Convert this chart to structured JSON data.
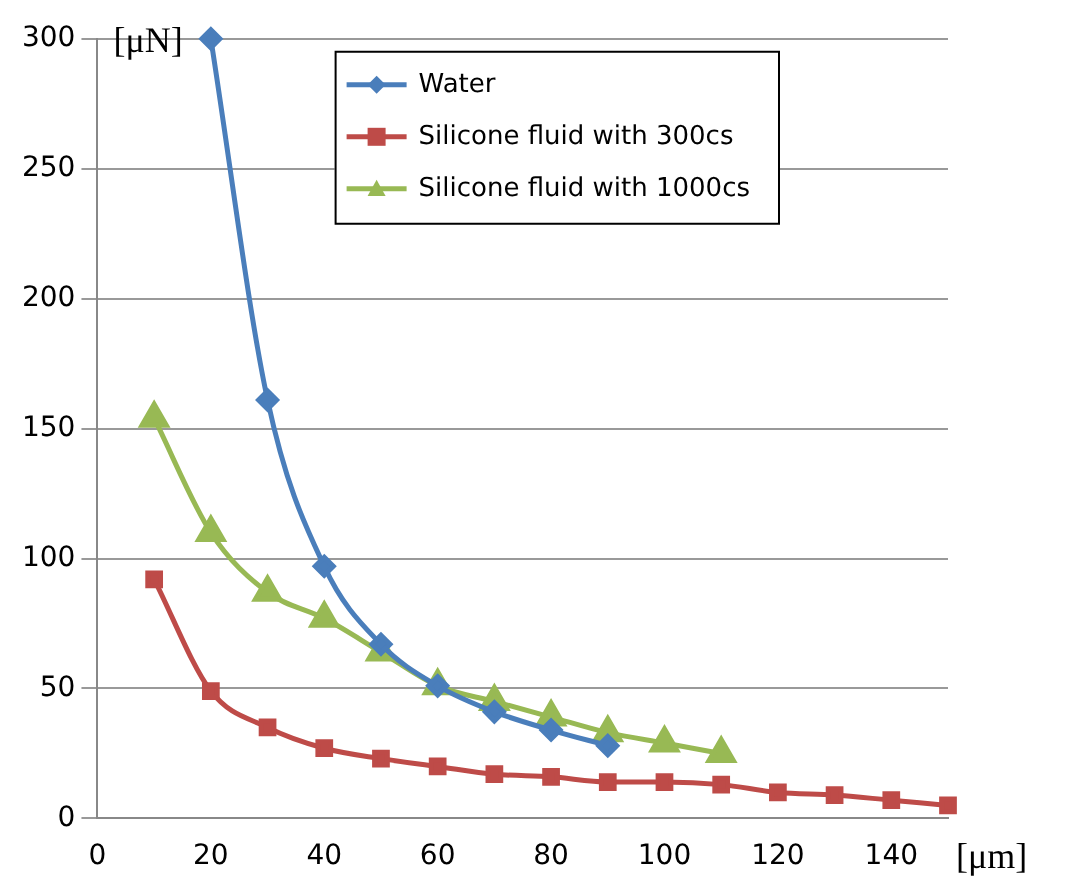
{
  "chart_data": {
    "type": "line",
    "xlabel": "[μm]",
    "ylabel": "[μN]",
    "xlim": [
      0,
      150
    ],
    "xticks": [
      0,
      20,
      40,
      60,
      80,
      100,
      120,
      140
    ],
    "ylim": [
      0,
      300
    ],
    "yticks": [
      0,
      50,
      100,
      150,
      200,
      250,
      300
    ],
    "grid": "y",
    "legend": "top right",
    "series": [
      {
        "name": "Water",
        "color": "#4a7ebb",
        "marker": "diamond",
        "x": [
          20,
          30,
          40,
          50,
          60,
          70,
          80,
          90
        ],
        "values": [
          300,
          161,
          97,
          67,
          51,
          41,
          34,
          28
        ]
      },
      {
        "name": "Silicone fluid with 300cs",
        "color": "#be4b48",
        "marker": "square",
        "x": [
          10,
          20,
          30,
          40,
          50,
          60,
          70,
          80,
          90,
          100,
          110,
          120,
          130,
          140,
          150
        ],
        "values": [
          92,
          49,
          35,
          27,
          23,
          20,
          17,
          16,
          14,
          14,
          13,
          10,
          9,
          7,
          5
        ]
      },
      {
        "name": "Silicone fluid with 1000cs",
        "color": "#98b954",
        "marker": "triangle",
        "x": [
          10,
          20,
          30,
          40,
          50,
          60,
          70,
          80,
          90,
          100,
          110
        ],
        "values": [
          154,
          110,
          87,
          77,
          64,
          51,
          45,
          39,
          33,
          29,
          25
        ]
      }
    ]
  }
}
